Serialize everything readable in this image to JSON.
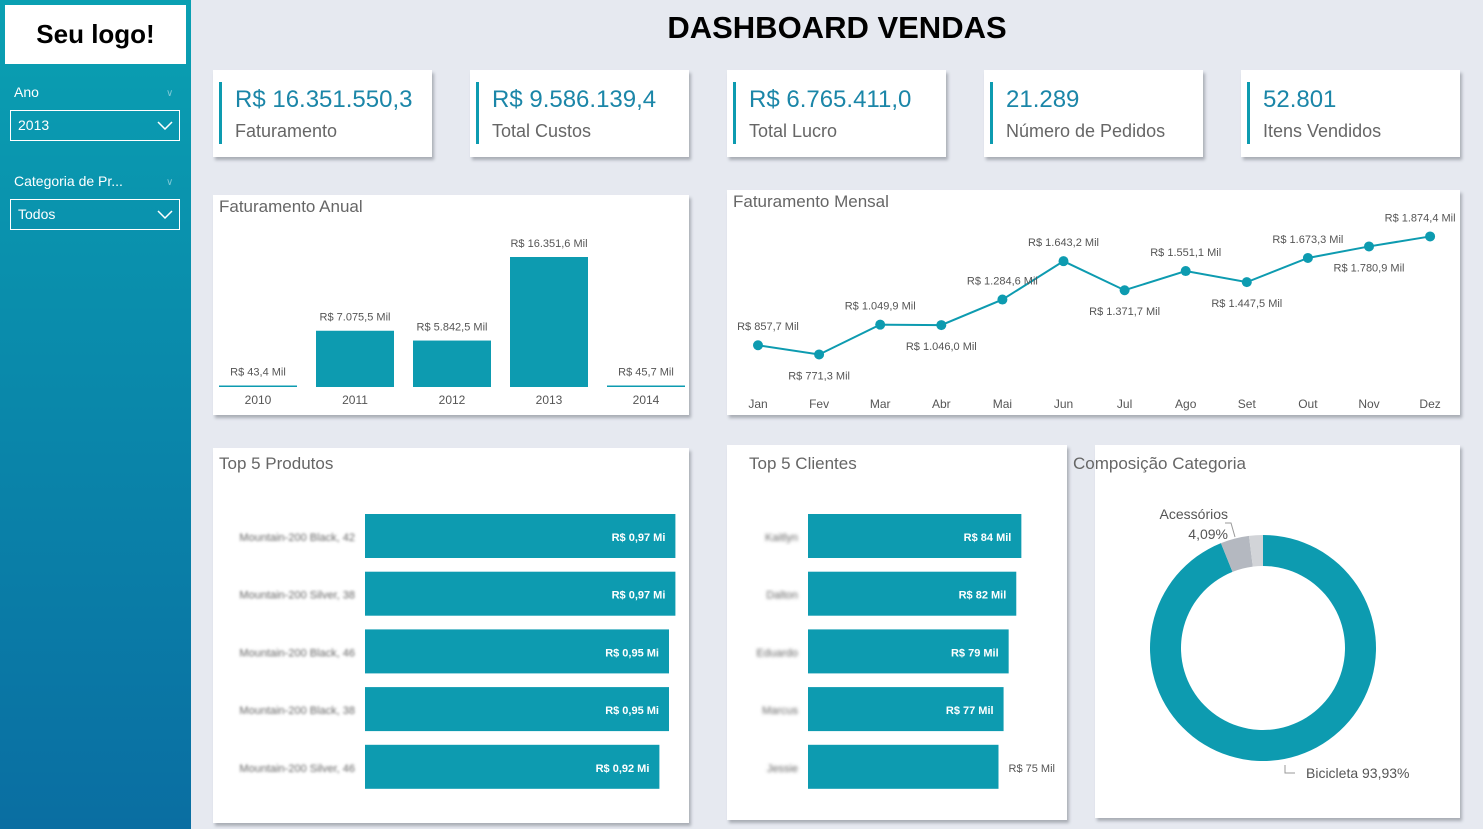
{
  "logo": "Seu logo!",
  "title": "DASHBOARD VENDAS",
  "filters": [
    {
      "label": "Ano",
      "value": "2013"
    },
    {
      "label": "Categoria de Pr...",
      "value": "Todos"
    }
  ],
  "kpis": [
    {
      "value": "R$ 16.351.550,3",
      "label": "Faturamento"
    },
    {
      "value": "R$ 9.586.139,4",
      "label": "Total Custos"
    },
    {
      "value": "R$ 6.765.411,0",
      "label": "Total Lucro"
    },
    {
      "value": "21.289",
      "label": "Número de Pedidos"
    },
    {
      "value": "52.801",
      "label": "Itens Vendidos"
    }
  ],
  "colors": {
    "accent": "#0d9bb0",
    "sidebar_top": "#0aa0b2",
    "sidebar_bottom": "#0a6ea2",
    "gray": "#b4b8c0"
  },
  "chart_data": [
    {
      "type": "bar",
      "title": "Faturamento Anual",
      "categories": [
        "2010",
        "2011",
        "2012",
        "2013",
        "2014"
      ],
      "values": [
        43.4,
        7075.5,
        5842.5,
        16351.6,
        45.7
      ],
      "labels": [
        "R$ 43,4 Mil",
        "R$ 7.075,5 Mil",
        "R$ 5.842,5 Mil",
        "R$ 16.351,6 Mil",
        "R$ 45,7 Mil"
      ]
    },
    {
      "type": "line",
      "title": "Faturamento Mensal",
      "categories": [
        "Jan",
        "Fev",
        "Mar",
        "Abr",
        "Mai",
        "Jun",
        "Jul",
        "Ago",
        "Set",
        "Out",
        "Nov",
        "Dez"
      ],
      "values": [
        857.7,
        771.3,
        1049.9,
        1046.0,
        1284.6,
        1643.2,
        1371.7,
        1551.1,
        1447.5,
        1673.3,
        1780.9,
        1874.4
      ],
      "labels": [
        "R$ 857,7 Mil",
        "R$ 771,3 Mil",
        "R$ 1.049,9 Mil",
        "R$ 1.046,0 Mil",
        "R$ 1.284,6 Mil",
        "R$ 1.643,2 Mil",
        "R$ 1.371,7 Mil",
        "R$ 1.551,1 Mil",
        "R$ 1.447,5 Mil",
        "R$ 1.673,3 Mil",
        "R$ 1.780,9 Mil",
        "R$ 1.874,4 Mil"
      ]
    },
    {
      "type": "bar",
      "orientation": "horizontal",
      "title": "Top 5 Produtos",
      "categories": [
        "Mountain-200 Black, 42",
        "Mountain-200 Silver, 38",
        "Mountain-200 Black, 46",
        "Mountain-200 Black, 38",
        "Mountain-200 Silver, 46"
      ],
      "values": [
        0.97,
        0.97,
        0.95,
        0.95,
        0.92
      ],
      "labels": [
        "R$ 0,97 Mi",
        "R$ 0,97 Mi",
        "R$ 0,95 Mi",
        "R$ 0,95 Mi",
        "R$ 0,92 Mi"
      ]
    },
    {
      "type": "bar",
      "orientation": "horizontal",
      "title": "Top 5 Clientes",
      "categories": [
        "Kaitlyn",
        "Dalton",
        "Eduardo",
        "Marcus",
        "Jessie"
      ],
      "values": [
        84,
        82,
        79,
        77,
        75
      ],
      "labels": [
        "R$ 84 Mil",
        "R$ 82 Mil",
        "R$ 79 Mil",
        "R$ 77 Mil",
        "R$ 75 Mil"
      ]
    },
    {
      "type": "pie",
      "donut": true,
      "title": "Composição Categoria",
      "slices": [
        {
          "name": "Bicicleta",
          "value": 93.93,
          "label": "Bicicleta 93,93%"
        },
        {
          "name": "Acessórios",
          "value": 4.09,
          "label": "4,09%"
        },
        {
          "name": "",
          "value": 1.98
        }
      ]
    }
  ]
}
